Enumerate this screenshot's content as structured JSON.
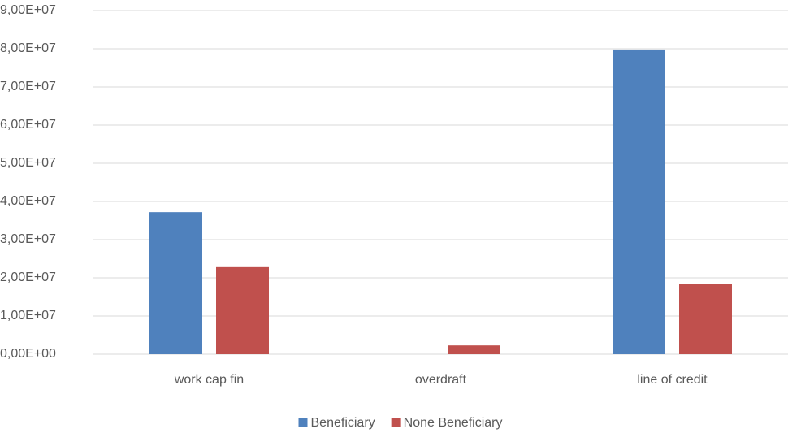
{
  "chart_data": {
    "type": "bar",
    "categories": [
      "work cap fin",
      "overdraft",
      "line of credit"
    ],
    "series": [
      {
        "name": "Beneficiary",
        "color": "#4f81bd",
        "values": [
          37200000,
          0,
          79800000
        ]
      },
      {
        "name": "None Beneficiary",
        "color": "#c0504d",
        "values": [
          22800000,
          2300000,
          18300000
        ]
      }
    ],
    "ylim": [
      0,
      90000000
    ],
    "yticks": [
      {
        "value": 0,
        "label": "0,00E+00"
      },
      {
        "value": 10000000,
        "label": "1,00E+07"
      },
      {
        "value": 20000000,
        "label": "2,00E+07"
      },
      {
        "value": 30000000,
        "label": "3,00E+07"
      },
      {
        "value": 40000000,
        "label": "4,00E+07"
      },
      {
        "value": 50000000,
        "label": "5,00E+07"
      },
      {
        "value": 60000000,
        "label": "6,00E+07"
      },
      {
        "value": 70000000,
        "label": "7,00E+07"
      },
      {
        "value": 80000000,
        "label": "8,00E+07"
      },
      {
        "value": 90000000,
        "label": "9,00E+07"
      }
    ],
    "grid": true,
    "legend": "bottom"
  }
}
